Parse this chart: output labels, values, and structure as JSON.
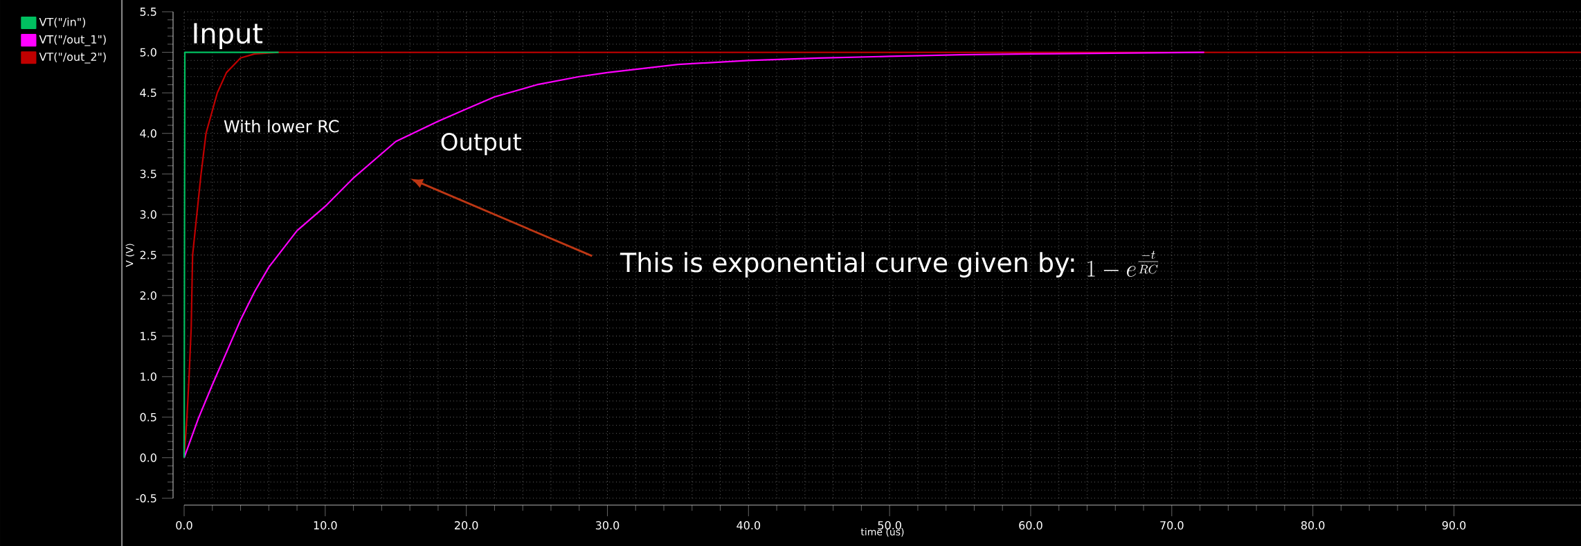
{
  "chart_data": {
    "type": "line",
    "xlabel": "time (us)",
    "ylabel": "V (V)",
    "xlim": [
      0,
      99
    ],
    "ylim": [
      -0.5,
      5.5
    ],
    "xticks": [
      {
        "value": 0,
        "label": "0.0"
      },
      {
        "value": 10,
        "label": "10.0"
      },
      {
        "value": 20,
        "label": "20.0"
      },
      {
        "value": 30,
        "label": "30.0"
      },
      {
        "value": 40,
        "label": "40.0"
      },
      {
        "value": 50,
        "label": "50.0"
      },
      {
        "value": 60,
        "label": "60.0"
      },
      {
        "value": 70,
        "label": "70.0"
      },
      {
        "value": 80,
        "label": "80.0"
      },
      {
        "value": 90,
        "label": "90.0"
      }
    ],
    "yticks": [
      {
        "value": -0.5,
        "label": "-0.5"
      },
      {
        "value": 0,
        "label": "0.0"
      },
      {
        "value": 0.5,
        "label": "0.5"
      },
      {
        "value": 1,
        "label": "1.0"
      },
      {
        "value": 1.5,
        "label": "1.5"
      },
      {
        "value": 2,
        "label": "2.0"
      },
      {
        "value": 2.5,
        "label": "2.5"
      },
      {
        "value": 3,
        "label": "3.0"
      },
      {
        "value": 3.5,
        "label": "3.5"
      },
      {
        "value": 4,
        "label": "4.0"
      },
      {
        "value": 4.5,
        "label": "4.5"
      },
      {
        "value": 5,
        "label": "5.0"
      },
      {
        "value": 5.5,
        "label": "5.5"
      }
    ],
    "grid": true,
    "legend": "top left",
    "marker": "none",
    "line_style": "solid",
    "series": [
      {
        "name": "VT(\"/in\")",
        "color": "#00c060",
        "x": [
          0,
          0.05,
          6.7
        ],
        "values": [
          0,
          5,
          5
        ]
      },
      {
        "name": "VT(\"/out_1\")",
        "color": "#ff00ff",
        "x": [
          0,
          1,
          2,
          3,
          4,
          5,
          6,
          8,
          10,
          12,
          15,
          18,
          20,
          22,
          25,
          28,
          30,
          35,
          40,
          45,
          50,
          55,
          60,
          72.3
        ],
        "values": [
          0,
          0.48,
          0.9,
          1.3,
          1.7,
          2.05,
          2.35,
          2.8,
          3.1,
          3.45,
          3.9,
          4.15,
          4.3,
          4.45,
          4.6,
          4.7,
          4.75,
          4.85,
          4.9,
          4.93,
          4.95,
          4.97,
          4.98,
          5.0
        ]
      },
      {
        "name": "VT(\"/out_2\")",
        "color": "#c00000",
        "x": [
          0,
          0.2,
          0.35,
          0.5,
          0.6,
          0.9,
          1.2,
          1.55,
          2.35,
          3,
          4,
          5,
          6.7,
          99
        ],
        "values": [
          0,
          0.5,
          1.0,
          1.6,
          2.5,
          3.0,
          3.5,
          4.0,
          4.5,
          4.75,
          4.93,
          4.98,
          5.0,
          5.0
        ]
      }
    ],
    "annotations": [
      "Input",
      "With lower RC",
      "Output",
      "This is exponential curve given by:",
      "1 - e^{\\frac{-t}{RC}}"
    ]
  }
}
